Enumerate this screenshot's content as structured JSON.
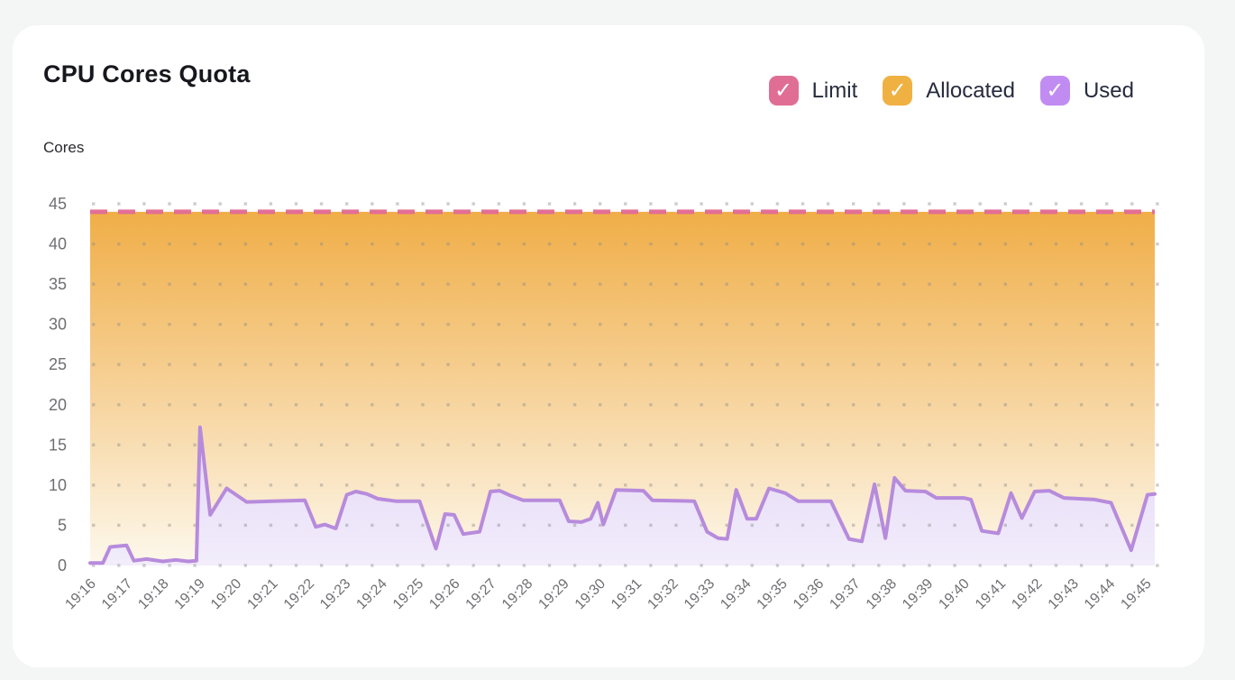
{
  "page": {
    "background_color": "#f4f6f6",
    "card_color": "#ffffff"
  },
  "header": {
    "title": "CPU Cores Quota",
    "y_axis_unit": "Cores"
  },
  "legend": [
    {
      "label": "Limit",
      "color": "#e06e94",
      "checked": true,
      "checkmark": "✓"
    },
    {
      "label": "Allocated",
      "color": "#f0b143",
      "checked": true,
      "checkmark": "✓"
    },
    {
      "label": "Used",
      "color": "#c18cf2",
      "checked": true,
      "checkmark": "✓"
    }
  ],
  "chart_data": {
    "type": "area",
    "title": "CPU Cores Quota",
    "ylabel": "Cores",
    "xlabel": "",
    "ylim": [
      0,
      45
    ],
    "y_ticks": [
      0,
      5,
      10,
      15,
      20,
      25,
      30,
      35,
      40,
      45
    ],
    "x_ticks": [
      "19:16",
      "19:17",
      "19:18",
      "19:19",
      "19:20",
      "19:21",
      "19:22",
      "19:23",
      "19:24",
      "19:25",
      "19:26",
      "19:27",
      "19:28",
      "19:29",
      "19:30",
      "19:31",
      "19:32",
      "19:33",
      "19:34",
      "19:35",
      "19:36",
      "19:37",
      "19:38",
      "19:39",
      "19:40",
      "19:41",
      "19:42",
      "19:43",
      "19:44",
      "19:45"
    ],
    "x_minutes_span": 29.25,
    "grid": "dotted",
    "grid_dot_color": "#8a8a8a",
    "legend_position": "top-right",
    "series": [
      {
        "name": "Limit",
        "style": "dashed-line",
        "color": "#e26f95",
        "constant_value": 44
      },
      {
        "name": "Allocated",
        "style": "area",
        "gradient_top": "#f0ae47",
        "gradient_mid": "#f6d095",
        "gradient_bottom": "#fdf8ec",
        "constant_value": 44
      },
      {
        "name": "Used",
        "style": "line-area",
        "line_color": "#b78bdc",
        "fill_top": "#e5d9f6",
        "fill_bottom": "#f2edfb",
        "points": [
          [
            0,
            0.3
          ],
          [
            0.35,
            0.3
          ],
          [
            0.55,
            2.3
          ],
          [
            1,
            2.5
          ],
          [
            1.2,
            0.6
          ],
          [
            1.55,
            0.8
          ],
          [
            2,
            0.5
          ],
          [
            2.35,
            0.7
          ],
          [
            2.7,
            0.5
          ],
          [
            2.92,
            0.6
          ],
          [
            3.02,
            17.2
          ],
          [
            3.3,
            6.3
          ],
          [
            3.75,
            9.6
          ],
          [
            4.3,
            7.9
          ],
          [
            5,
            8
          ],
          [
            5.9,
            8.1
          ],
          [
            6.2,
            4.8
          ],
          [
            6.45,
            5.1
          ],
          [
            6.75,
            4.6
          ],
          [
            7.05,
            8.8
          ],
          [
            7.3,
            9.2
          ],
          [
            7.6,
            8.9
          ],
          [
            7.9,
            8.3
          ],
          [
            8.4,
            8
          ],
          [
            9.05,
            8
          ],
          [
            9.5,
            2.1
          ],
          [
            9.75,
            6.4
          ],
          [
            10,
            6.3
          ],
          [
            10.25,
            3.9
          ],
          [
            10.7,
            4.2
          ],
          [
            11,
            9.2
          ],
          [
            11.25,
            9.3
          ],
          [
            11.55,
            8.7
          ],
          [
            11.9,
            8.1
          ],
          [
            12.9,
            8.1
          ],
          [
            13.15,
            5.5
          ],
          [
            13.5,
            5.4
          ],
          [
            13.75,
            5.8
          ],
          [
            13.95,
            7.8
          ],
          [
            14.1,
            5.1
          ],
          [
            14.45,
            9.4
          ],
          [
            15.2,
            9.3
          ],
          [
            15.45,
            8.1
          ],
          [
            16.6,
            8
          ],
          [
            16.95,
            4.2
          ],
          [
            17.25,
            3.4
          ],
          [
            17.5,
            3.3
          ],
          [
            17.75,
            9.4
          ],
          [
            18.05,
            5.8
          ],
          [
            18.3,
            5.8
          ],
          [
            18.65,
            9.6
          ],
          [
            19.1,
            9
          ],
          [
            19.45,
            8
          ],
          [
            20.35,
            8
          ],
          [
            20.85,
            3.3
          ],
          [
            21.2,
            3
          ],
          [
            21.55,
            10.1
          ],
          [
            21.85,
            3.4
          ],
          [
            22.1,
            10.9
          ],
          [
            22.4,
            9.3
          ],
          [
            22.95,
            9.2
          ],
          [
            23.25,
            8.4
          ],
          [
            24,
            8.4
          ],
          [
            24.2,
            8.2
          ],
          [
            24.5,
            4.3
          ],
          [
            24.95,
            4
          ],
          [
            25.3,
            9
          ],
          [
            25.6,
            5.9
          ],
          [
            25.95,
            9.2
          ],
          [
            26.35,
            9.3
          ],
          [
            26.75,
            8.4
          ],
          [
            27.6,
            8.2
          ],
          [
            28.05,
            7.8
          ],
          [
            28.6,
            1.9
          ],
          [
            29.05,
            8.8
          ],
          [
            29.25,
            8.9
          ]
        ]
      }
    ]
  }
}
